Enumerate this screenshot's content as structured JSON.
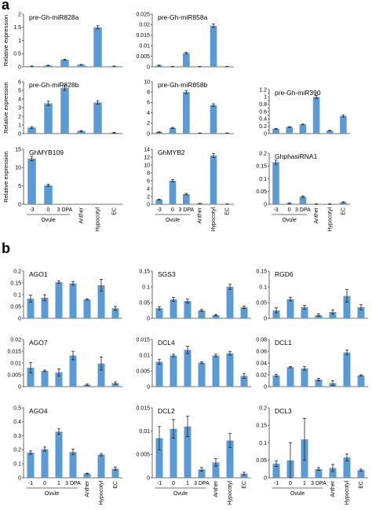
{
  "panel_labels": [
    "a",
    "b"
  ],
  "ylabel": "Relative expression",
  "categories_a": [
    "-3",
    "0",
    "3 DPA",
    "Anther",
    "Hypocotyl",
    "EC"
  ],
  "categories_b": [
    "-1",
    "0",
    "1",
    "3 DPA",
    "Anther",
    "Hypocotyl",
    "EC"
  ],
  "ovule_label": "Ovule",
  "colors": {
    "bar": "#5b9bd5",
    "error": "#222222",
    "axis": "#444444"
  },
  "chart_data": [
    {
      "type": "bar",
      "title": "pre-Gh-miR828a",
      "categories": [
        "-3",
        "0",
        "3 DPA",
        "Anther",
        "Hypocotyl",
        "EC"
      ],
      "values": [
        0.02,
        0.05,
        0.27,
        0.08,
        1.5,
        0.02
      ],
      "errors": [
        0.01,
        0.01,
        0.02,
        0.01,
        0.06,
        0.01
      ],
      "ylim": [
        0,
        2
      ],
      "yticks": [
        "0",
        "0.5",
        "1",
        "1.5",
        "2"
      ],
      "ylabel": "Relative expression"
    },
    {
      "type": "bar",
      "title": "pre-Gh-miR858a",
      "categories": [
        "-3",
        "0",
        "3 DPA",
        "Anther",
        "Hypocotyl",
        "EC"
      ],
      "values": [
        0.0006,
        0.0001,
        0.0065,
        0.0001,
        0.0195,
        0.0001
      ],
      "errors": [
        0.0002,
        0.0001,
        0.0004,
        0.0001,
        0.0008,
        0.0001
      ],
      "ylim": [
        0,
        0.025
      ],
      "yticks": [
        "0",
        "0.005",
        "0.01",
        "0.015",
        "0.02",
        "0.025"
      ],
      "ylabel": ""
    },
    {
      "type": "bar",
      "title": "pre-Gh-miR828b",
      "categories": [
        "-3",
        "0",
        "3 DPA",
        "Anther",
        "Hypocotyl",
        "EC"
      ],
      "values": [
        0.7,
        3.5,
        5.3,
        0.3,
        3.6,
        0.1
      ],
      "errors": [
        0.1,
        0.25,
        0.3,
        0.05,
        0.2,
        0.05
      ],
      "ylim": [
        0,
        6
      ],
      "yticks": [
        "0",
        "1",
        "2",
        "3",
        "4",
        "5",
        "6"
      ],
      "ylabel": "Relative expression"
    },
    {
      "type": "bar",
      "title": "pre-Gh-miR858b",
      "categories": [
        "-3",
        "0",
        "3 DPA",
        "Anther",
        "Hypocotyl",
        "EC"
      ],
      "values": [
        0.3,
        1.1,
        8.0,
        0.1,
        5.5,
        0.1
      ],
      "errors": [
        0.05,
        0.1,
        0.3,
        0.03,
        0.25,
        0.03
      ],
      "ylim": [
        0,
        10
      ],
      "yticks": [
        "0",
        "2",
        "4",
        "6",
        "8",
        "10"
      ],
      "ylabel": ""
    },
    {
      "type": "bar",
      "title": "pre-Gh-miR390",
      "categories": [
        "-3",
        "0",
        "3 DPA",
        "Anther",
        "Hypocotyl",
        "EC"
      ],
      "values": [
        0.13,
        0.18,
        0.25,
        1.0,
        0.08,
        0.48
      ],
      "errors": [
        0.01,
        0.01,
        0.01,
        0.04,
        0.01,
        0.03
      ],
      "ylim": [
        0,
        1.2
      ],
      "yticks": [
        "0",
        "0.1",
        "0.2",
        "0.3",
        "0.4",
        "0.5",
        "0.6",
        "0.7",
        "0.8",
        "0.9",
        "1",
        "1.1",
        "1.2"
      ],
      "ylabel": ""
    },
    {
      "type": "bar",
      "title": "GhMYB109",
      "categories": [
        "-3",
        "0",
        "3 DPA",
        "Anther",
        "Hypocotyl",
        "EC"
      ],
      "values": [
        12.5,
        5.2,
        0.0,
        0.0,
        0.0,
        0.0
      ],
      "errors": [
        0.6,
        0.3,
        0,
        0,
        0,
        0
      ],
      "ylim": [
        0,
        15
      ],
      "yticks": [
        "0",
        "5",
        "10",
        "15"
      ],
      "ylabel": "Relative expression"
    },
    {
      "type": "bar",
      "title": "GhMYB2",
      "categories": [
        "-3",
        "0",
        "3 DPA",
        "Anther",
        "Hypocotyl",
        "EC"
      ],
      "values": [
        1.2,
        6.0,
        2.6,
        0.2,
        12.4,
        0.1
      ],
      "errors": [
        0.1,
        0.3,
        0.2,
        0.05,
        0.5,
        0.03
      ],
      "ylim": [
        0,
        14
      ],
      "yticks": [
        "0",
        "2",
        "4",
        "6",
        "8",
        "10",
        "12",
        "14"
      ],
      "ylabel": ""
    },
    {
      "type": "bar",
      "title": "GhphasiRNA1",
      "categories": [
        "-3",
        "0",
        "3 DPA",
        "Anther",
        "Hypocotyl",
        "EC"
      ],
      "values": [
        0.165,
        0.004,
        0.03,
        0.001,
        0.001,
        0.008
      ],
      "errors": [
        0.008,
        0.002,
        0.003,
        0.001,
        0.001,
        0.002
      ],
      "ylim": [
        0,
        0.2
      ],
      "yticks": [
        "0",
        "0.05",
        "0.1",
        "0.15",
        "0.2"
      ],
      "ylabel": ""
    },
    {
      "type": "bar",
      "title": "AGO1",
      "categories": [
        "-1",
        "0",
        "1",
        "3 DPA",
        "Anther",
        "Hypocotyl",
        "EC"
      ],
      "values": [
        0.083,
        0.087,
        0.153,
        0.148,
        0.08,
        0.14,
        0.042
      ],
      "errors": [
        0.015,
        0.013,
        0.005,
        0.008,
        0.003,
        0.025,
        0.008
      ],
      "ylim": [
        0,
        0.2
      ],
      "yticks": [
        "0",
        "0.05",
        "0.1",
        "0.15",
        "0.2"
      ],
      "ylabel": ""
    },
    {
      "type": "bar",
      "title": "SGS3",
      "categories": [
        "-1",
        "0",
        "1",
        "3 DPA",
        "Anther",
        "Hypocotyl",
        "EC"
      ],
      "values": [
        0.032,
        0.06,
        0.055,
        0.025,
        0.01,
        0.1,
        0.035
      ],
      "errors": [
        0.005,
        0.006,
        0.006,
        0.003,
        0.002,
        0.008,
        0.004
      ],
      "ylim": [
        0,
        0.15
      ],
      "yticks": [
        "0",
        "0.05",
        "0.1",
        "0.15"
      ],
      "ylabel": ""
    },
    {
      "type": "bar",
      "title": "RGD6",
      "categories": [
        "-1",
        "0",
        "1",
        "3 DPA",
        "Anther",
        "Hypocotyl",
        "EC"
      ],
      "values": [
        0.025,
        0.061,
        0.035,
        0.01,
        0.02,
        0.071,
        0.035
      ],
      "errors": [
        0.008,
        0.006,
        0.006,
        0.004,
        0.007,
        0.02,
        0.008
      ],
      "ylim": [
        0,
        0.15
      ],
      "yticks": [
        "0",
        "0.05",
        "0.1",
        "0.15"
      ],
      "ylabel": ""
    },
    {
      "type": "bar",
      "title": "AGO7",
      "categories": [
        "-1",
        "0",
        "1",
        "3 DPA",
        "Anther",
        "Hypocotyl",
        "EC"
      ],
      "values": [
        0.008,
        0.0067,
        0.006,
        0.0132,
        0.0008,
        0.0098,
        0.0015
      ],
      "errors": [
        0.0022,
        0.0003,
        0.0015,
        0.0018,
        0.0003,
        0.0028,
        0.0005
      ],
      "ylim": [
        0,
        0.02
      ],
      "yticks": [
        "0",
        "0.005",
        "0.01",
        "0.015",
        "0.02"
      ],
      "ylabel": ""
    },
    {
      "type": "bar",
      "title": "DCL4",
      "categories": [
        "-1",
        "0",
        "1",
        "3 DPA",
        "Anther",
        "Hypocotyl",
        "EC"
      ],
      "values": [
        0.0079,
        0.0099,
        0.0117,
        0.0076,
        0.0099,
        0.0106,
        0.0034
      ],
      "errors": [
        0.0008,
        0.0004,
        0.0012,
        0.0003,
        0.0004,
        0.0006,
        0.0008
      ],
      "ylim": [
        0,
        0.015
      ],
      "yticks": [
        "0",
        "0.005",
        "0.01",
        "0.015"
      ],
      "ylabel": ""
    },
    {
      "type": "bar",
      "title": "DCL1",
      "categories": [
        "-1",
        "0",
        "1",
        "3 DPA",
        "Anther",
        "Hypocotyl",
        "EC"
      ],
      "values": [
        0.019,
        0.033,
        0.031,
        0.012,
        0.006,
        0.058,
        0.019
      ],
      "errors": [
        0.002,
        0.001,
        0.003,
        0.002,
        0.004,
        0.004,
        0.001
      ],
      "ylim": [
        0,
        0.08
      ],
      "yticks": [
        "0",
        "0.02",
        "0.04",
        "0.06",
        "0.08"
      ],
      "ylabel": ""
    },
    {
      "type": "bar",
      "title": "AGO4",
      "categories": [
        "-1",
        "0",
        "1",
        "3 DPA",
        "Anther",
        "Hypocotyl",
        "EC"
      ],
      "values": [
        0.18,
        0.205,
        0.33,
        0.185,
        0.03,
        0.165,
        0.065
      ],
      "errors": [
        0.012,
        0.015,
        0.02,
        0.02,
        0.003,
        0.008,
        0.012
      ],
      "ylim": [
        0,
        0.5
      ],
      "yticks": [
        "0",
        "0.1",
        "0.2",
        "0.3",
        "0.4",
        "0.5"
      ],
      "ylabel": ""
    },
    {
      "type": "bar",
      "title": "DCL2",
      "categories": [
        "-1",
        "0",
        "1",
        "3 DPA",
        "Anther",
        "Hypocotyl",
        "EC"
      ],
      "values": [
        0.0085,
        0.0105,
        0.011,
        0.0018,
        0.0033,
        0.008,
        0.0009
      ],
      "errors": [
        0.0025,
        0.002,
        0.0022,
        0.0004,
        0.0008,
        0.0015,
        0.0003
      ],
      "ylim": [
        0,
        0.015
      ],
      "yticks": [
        "0",
        "0.005",
        "0.01",
        "0.015"
      ],
      "ylabel": ""
    },
    {
      "type": "bar",
      "title": "DCL3",
      "categories": [
        "-1",
        "0",
        "1",
        "3 DPA",
        "Anther",
        "Hypocotyl",
        "EC"
      ],
      "values": [
        0.04,
        0.05,
        0.11,
        0.025,
        0.028,
        0.058,
        0.022
      ],
      "errors": [
        0.008,
        0.05,
        0.06,
        0.004,
        0.01,
        0.01,
        0.003
      ],
      "ylim": [
        0,
        0.2
      ],
      "yticks": [
        "0",
        "0.05",
        "0.1",
        "0.15",
        "0.2"
      ],
      "ylabel": ""
    }
  ]
}
